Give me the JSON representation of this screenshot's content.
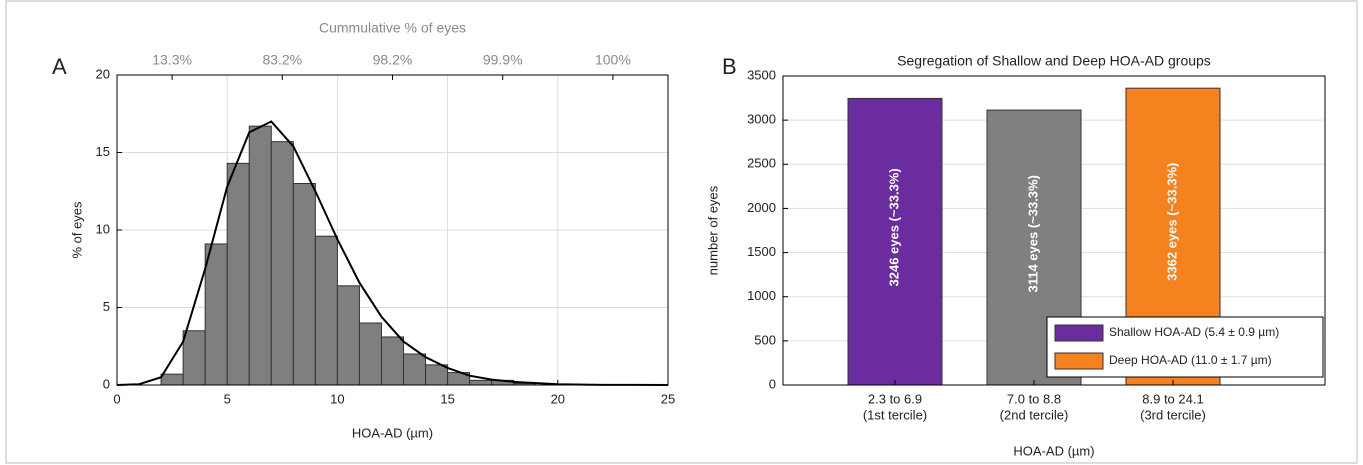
{
  "chart_data": [
    {
      "type": "histogram",
      "panel_label": "A",
      "x2_title": "Cummulative % of eyes",
      "xlabel": "HOA-AD (µm)",
      "ylabel": "% of eyes",
      "bins": [
        2,
        3,
        4,
        5,
        6,
        7,
        8,
        9,
        10,
        11,
        12,
        13,
        14,
        15,
        16,
        17,
        18,
        19
      ],
      "values": [
        0.7,
        3.5,
        9.1,
        14.3,
        16.7,
        15.7,
        13.0,
        9.6,
        6.4,
        4.0,
        3.1,
        2.0,
        1.3,
        0.8,
        0.3,
        0.3,
        0.1
      ],
      "color": "#7f7f7f",
      "curve": {
        "x": [
          0,
          1,
          2,
          3,
          4,
          5,
          6,
          7,
          8,
          9,
          10,
          11,
          12,
          13,
          14,
          15,
          16,
          17,
          18,
          20,
          22,
          25
        ],
        "values": [
          0,
          0.05,
          0.5,
          2.8,
          7.5,
          12.8,
          16.3,
          17.0,
          15.4,
          12.5,
          9.4,
          6.6,
          4.4,
          2.8,
          1.8,
          1.1,
          0.6,
          0.35,
          0.2,
          0.05,
          0.01,
          0
        ],
        "color": "#000000"
      },
      "xlim": [
        0,
        25
      ],
      "xticks": [
        0,
        5,
        10,
        15,
        20,
        25
      ],
      "ylim": [
        0,
        20
      ],
      "yticks": [
        0,
        5,
        10,
        15,
        20
      ],
      "x2lim": [
        0,
        25
      ],
      "x2ticks": [
        {
          "value": 2.5,
          "label": "13.3%"
        },
        {
          "value": 7.5,
          "label": "83.2%"
        },
        {
          "value": 12.5,
          "label": "98.2%"
        },
        {
          "value": 17.5,
          "label": "99.9%"
        },
        {
          "value": 22.5,
          "label": "100%"
        }
      ],
      "grid": true
    },
    {
      "type": "bar",
      "panel_label": "B",
      "title": "Segregation of Shallow and Deep HOA-AD groups",
      "xlabel": "HOA-AD (µm)",
      "ylabel": "number of eyes",
      "categories": [
        "2.3 to 6.9",
        "7.0 to 8.8",
        "8.9 to 24.1"
      ],
      "category_sublabels": [
        "(1st tercile)",
        "(2nd tercile)",
        "(3rd tercile)"
      ],
      "values": [
        3246,
        3114,
        3362
      ],
      "value_labels": [
        "3246 eyes (~33.3%)",
        "3114 eyes (~33.3%)",
        "3362 eyes (~33.3%)"
      ],
      "colors": [
        "#6a2c9e",
        "#808080",
        "#f5821f"
      ],
      "ylim": [
        0,
        3500
      ],
      "yticks": [
        0,
        500,
        1000,
        1500,
        2000,
        2500,
        3000,
        3500
      ],
      "legend": [
        {
          "name": "Shallow HOA-AD (5.4 ± 0.9 µm)",
          "color": "#6a2c9e"
        },
        {
          "name": "Deep HOA-AD (11.0 ± 1.7 µm)",
          "color": "#f5821f"
        }
      ],
      "legend_position": "lower right",
      "grid": true
    }
  ]
}
